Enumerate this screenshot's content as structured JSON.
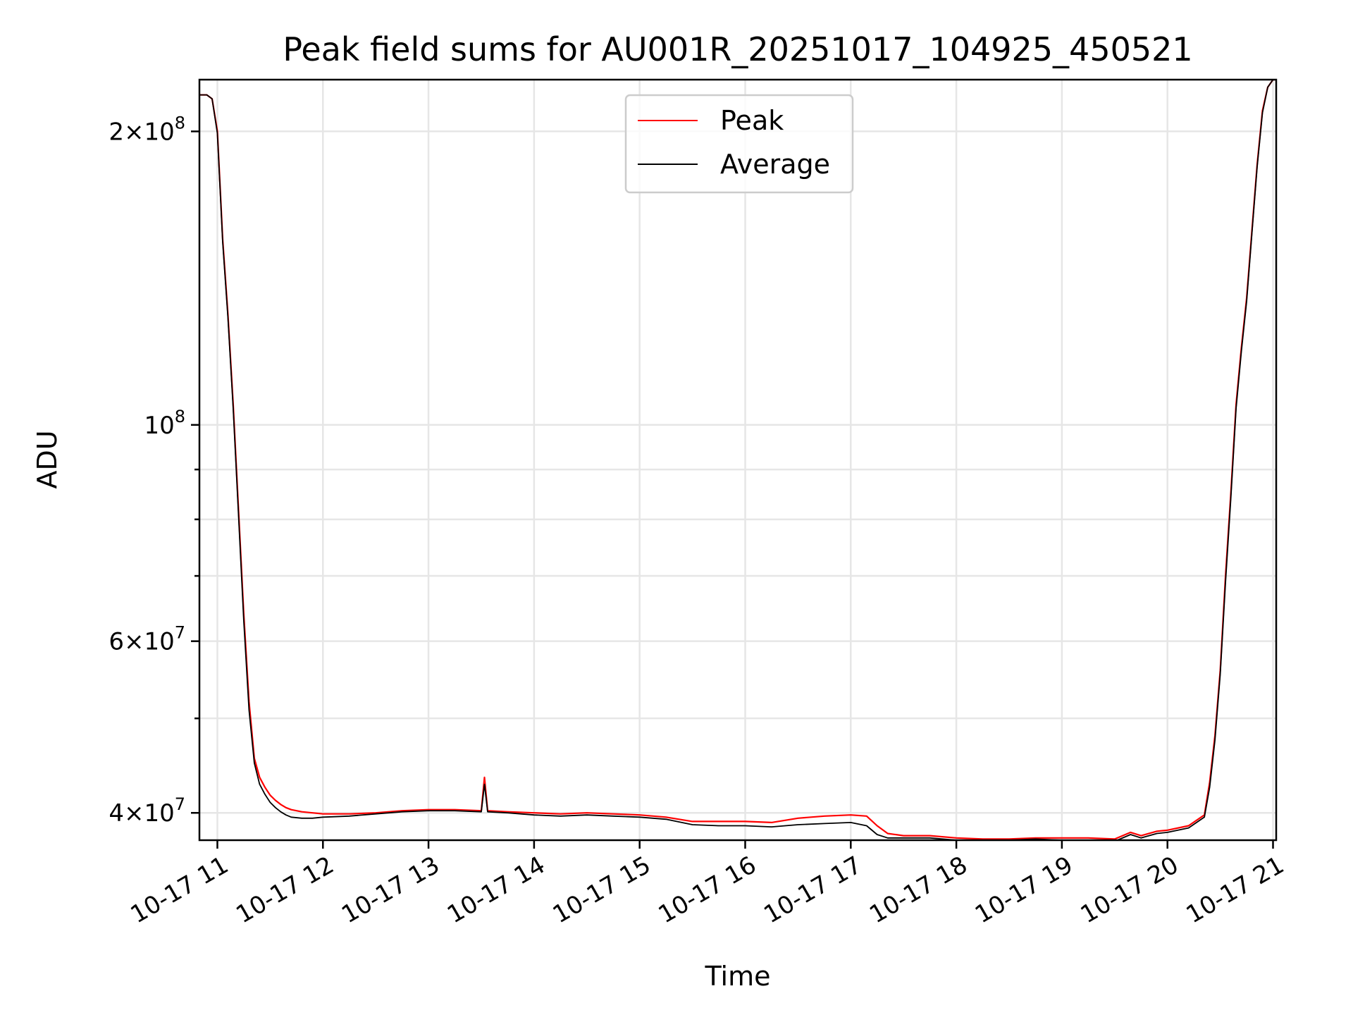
{
  "chart_data": {
    "type": "line",
    "title": "Peak field sums for AU001R_20251017_104925_450521",
    "xlabel": "Time",
    "ylabel": "ADU",
    "yscale": "log",
    "xlim": [
      10.83,
      21.03
    ],
    "ylim": [
      37500000,
      226000000
    ],
    "grid": true,
    "legend_position": "top-center",
    "x_ticks": [
      {
        "value": 11,
        "label": "10-17 11"
      },
      {
        "value": 12,
        "label": "10-17 12"
      },
      {
        "value": 13,
        "label": "10-17 13"
      },
      {
        "value": 14,
        "label": "10-17 14"
      },
      {
        "value": 15,
        "label": "10-17 15"
      },
      {
        "value": 16,
        "label": "10-17 16"
      },
      {
        "value": 17,
        "label": "10-17 17"
      },
      {
        "value": 18,
        "label": "10-17 18"
      },
      {
        "value": 19,
        "label": "10-17 19"
      },
      {
        "value": 20,
        "label": "10-17 20"
      },
      {
        "value": 21,
        "label": "10-17 21"
      }
    ],
    "y_major_ticks": [
      {
        "value": 40000000,
        "mant": "4",
        "exp": "7"
      },
      {
        "value": 60000000,
        "mant": "6",
        "exp": "7"
      },
      {
        "value": 100000000,
        "mant": "",
        "exp": "8"
      },
      {
        "value": 200000000,
        "mant": "2",
        "exp": "8"
      }
    ],
    "y_minor_ticks": [
      50000000,
      70000000,
      80000000,
      90000000
    ],
    "series": [
      {
        "name": "Peak",
        "color": "#ff0000",
        "x": [
          10.83,
          10.9,
          10.95,
          11.0,
          11.05,
          11.1,
          11.15,
          11.2,
          11.25,
          11.3,
          11.35,
          11.4,
          11.45,
          11.5,
          11.55,
          11.6,
          11.65,
          11.7,
          11.8,
          11.9,
          12.0,
          12.25,
          12.5,
          12.75,
          13.0,
          13.25,
          13.5,
          13.53,
          13.56,
          13.75,
          14.0,
          14.25,
          14.5,
          14.75,
          15.0,
          15.25,
          15.5,
          15.75,
          16.0,
          16.25,
          16.5,
          16.75,
          17.0,
          17.15,
          17.25,
          17.35,
          17.5,
          17.75,
          18.0,
          18.25,
          18.5,
          18.75,
          19.0,
          19.25,
          19.5,
          19.65,
          19.75,
          19.9,
          20.0,
          20.2,
          20.35,
          20.4,
          20.45,
          20.5,
          20.55,
          20.6,
          20.65,
          20.7,
          20.75,
          20.8,
          20.85,
          20.9,
          20.95,
          21.0,
          21.03
        ],
        "values": [
          218000000,
          218000000,
          216000000,
          200000000,
          155000000,
          130000000,
          105000000,
          82000000,
          64000000,
          52000000,
          45500000,
          43500000,
          42500000,
          41700000,
          41200000,
          40800000,
          40500000,
          40300000,
          40100000,
          40000000,
          39900000,
          39900000,
          40000000,
          40200000,
          40300000,
          40300000,
          40200000,
          43500000,
          40200000,
          40100000,
          40000000,
          39900000,
          40000000,
          39900000,
          39800000,
          39600000,
          39200000,
          39200000,
          39200000,
          39100000,
          39500000,
          39700000,
          39800000,
          39700000,
          38800000,
          38100000,
          37900000,
          37900000,
          37700000,
          37600000,
          37600000,
          37700000,
          37700000,
          37700000,
          37600000,
          38200000,
          37900000,
          38300000,
          38400000,
          38800000,
          39800000,
          43000000,
          48000000,
          56000000,
          70000000,
          85000000,
          105000000,
          120000000,
          135000000,
          158000000,
          185000000,
          210000000,
          222000000,
          226000000,
          226000000
        ]
      },
      {
        "name": "Average",
        "color": "#000000",
        "x": [
          10.83,
          10.9,
          10.95,
          11.0,
          11.05,
          11.1,
          11.15,
          11.2,
          11.25,
          11.3,
          11.35,
          11.4,
          11.45,
          11.5,
          11.55,
          11.6,
          11.65,
          11.7,
          11.8,
          11.9,
          12.0,
          12.25,
          12.5,
          12.75,
          13.0,
          13.25,
          13.5,
          13.53,
          13.56,
          13.75,
          14.0,
          14.25,
          14.5,
          14.75,
          15.0,
          15.25,
          15.5,
          15.75,
          16.0,
          16.25,
          16.5,
          16.75,
          17.0,
          17.15,
          17.25,
          17.35,
          17.5,
          17.75,
          18.0,
          18.25,
          18.5,
          18.75,
          19.0,
          19.25,
          19.5,
          19.65,
          19.75,
          19.9,
          20.0,
          20.2,
          20.35,
          20.4,
          20.45,
          20.5,
          20.55,
          20.6,
          20.65,
          20.7,
          20.75,
          20.8,
          20.85,
          20.9,
          20.95,
          21.0,
          21.03
        ],
        "values": [
          218000000,
          218000000,
          216000000,
          199000000,
          154000000,
          129000000,
          104000000,
          81000000,
          63000000,
          51000000,
          45000000,
          42800000,
          41800000,
          41000000,
          40500000,
          40100000,
          39800000,
          39600000,
          39500000,
          39500000,
          39600000,
          39700000,
          39900000,
          40100000,
          40200000,
          40200000,
          40100000,
          42800000,
          40100000,
          40000000,
          39800000,
          39700000,
          39800000,
          39700000,
          39600000,
          39400000,
          38900000,
          38800000,
          38800000,
          38700000,
          38900000,
          39000000,
          39100000,
          38800000,
          38000000,
          37700000,
          37700000,
          37700000,
          37500000,
          37500000,
          37500000,
          37600000,
          37500000,
          37500000,
          37400000,
          38000000,
          37700000,
          38100000,
          38200000,
          38600000,
          39600000,
          42500000,
          47500000,
          55500000,
          69000000,
          84000000,
          104000000,
          119000000,
          134000000,
          157000000,
          184000000,
          209000000,
          222000000,
          226000000,
          226000000
        ]
      }
    ]
  }
}
